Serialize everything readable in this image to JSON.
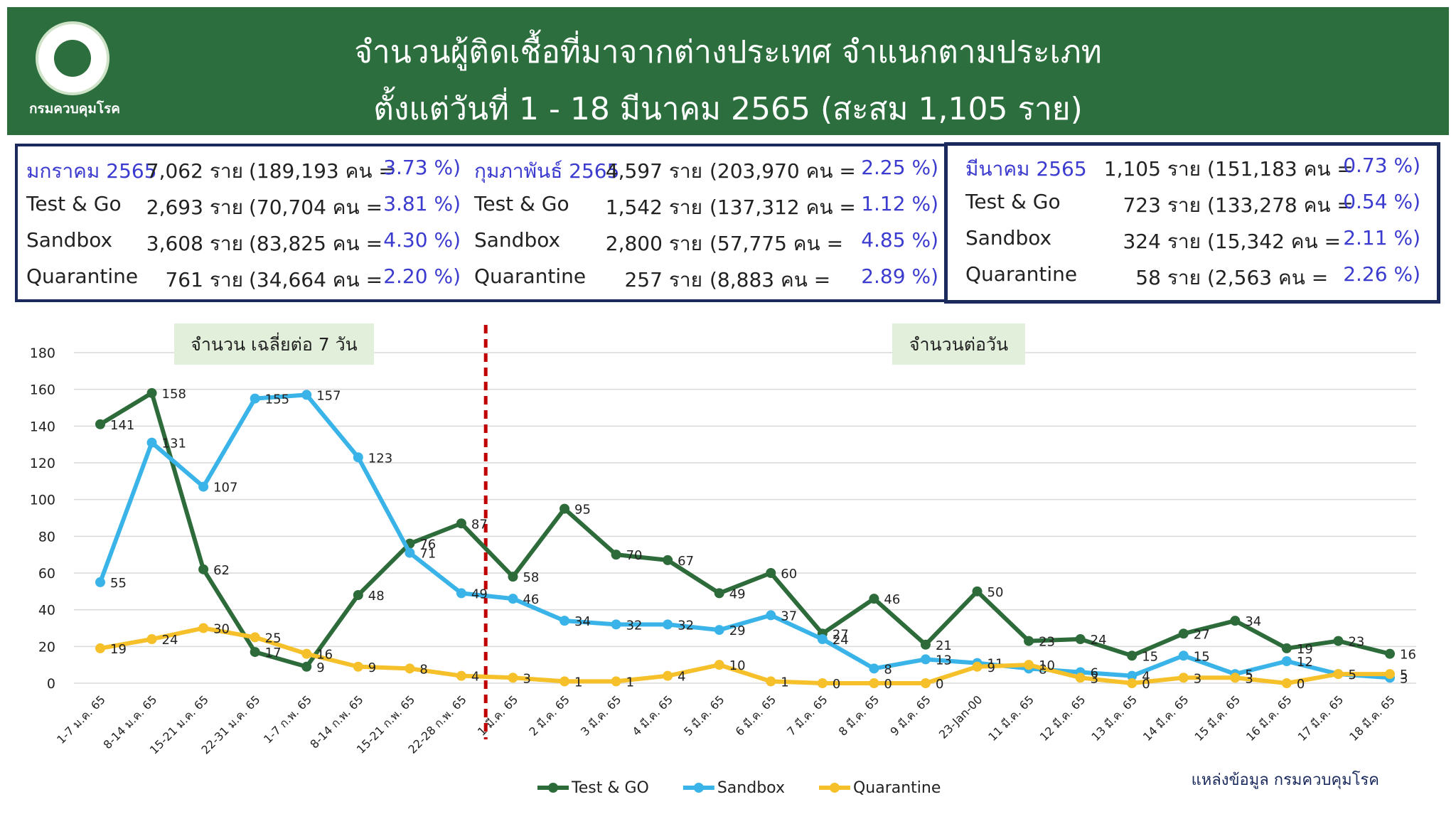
{
  "header": {
    "title_line1": "จำนวนผู้ติดเชื้อที่มาจากต่างประเทศ จำแนกตามประเภท",
    "title_line2": "ตั้งแต่วันที่  1 - 18  มีนาคม  2565 (สะสม 1,105 ราย)",
    "logo_text": "กรมควบคุมโรค"
  },
  "stats": [
    {
      "rows": [
        [
          "มกราคม 2565",
          "7,062 ราย",
          "(189,193 คน =",
          "3.73 %)"
        ],
        [
          "Test & Go",
          "2,693 ราย",
          "(70,704 คน =",
          "3.81 %)"
        ],
        [
          "Sandbox",
          "3,608 ราย",
          "(83,825 คน =",
          "4.30 %)"
        ],
        [
          "Quarantine",
          "761 ราย",
          "(34,664 คน =",
          "2.20 %)"
        ]
      ]
    },
    {
      "rows": [
        [
          "กุมภาพันธ์ 2565",
          "4,597 ราย",
          "(203,970 คน =",
          "2.25 %)"
        ],
        [
          "Test & Go",
          "1,542 ราย",
          "(137,312 คน  =",
          "1.12 %)"
        ],
        [
          "Sandbox",
          "2,800 ราย",
          "(57,775 คน  =",
          "4.85 %)"
        ],
        [
          "Quarantine",
          "257 ราย",
          "(8,883 คน     =",
          "2.89 %)"
        ]
      ]
    },
    {
      "rows": [
        [
          "มีนาคม 2565",
          "1,105 ราย",
          "(151,183 คน =",
          "0.73 %)"
        ],
        [
          "Test & Go",
          "723 ราย",
          "(133,278 คน =",
          "0.54 %)"
        ],
        [
          "Sandbox",
          "324 ราย",
          "(15,342 คน  =",
          "2.11 %)"
        ],
        [
          "Quarantine",
          "58 ราย",
          "(2,563 คน   =",
          "2.26 %)"
        ]
      ]
    }
  ],
  "chart_data": {
    "type": "line",
    "annotations": [
      "จำนวน เฉลี่ยต่อ 7 วัน",
      "จำนวนต่อวัน"
    ],
    "source": "แหล่งข้อมูล กรมควบคุมโรค",
    "categories": [
      "1-7 ม.ค. 65",
      "8-14 ม.ค. 65",
      "15-21 ม.ค. 65",
      "22-31 ม.ค. 65",
      "1-7 ก.พ. 65",
      "8-14 ก.พ. 65",
      "15-21 ก.พ. 65",
      "22-28 ก.พ. 65",
      "1 มี.ค. 65",
      "2 มี.ค. 65",
      "3 มี.ค. 65",
      "4 มี.ค. 65",
      "5 มี.ค. 65",
      "6 มี.ค. 65",
      "7 มี.ค. 65",
      "8 มี.ค. 65",
      "9 มี.ค. 65",
      "23-Jan-00",
      "11 มี.ค. 65",
      "12 มี.ค. 65",
      "13 มี.ค. 65",
      "14 มี.ค. 65",
      "15 มี.ค. 65",
      "16 มี.ค. 65",
      "17 มี.ค. 65",
      "18 มี.ค. 65"
    ],
    "series": [
      {
        "name": "Test & GO",
        "color": "#2e6b3a",
        "values": [
          141,
          158,
          62,
          17,
          9,
          48,
          76,
          87,
          58,
          95,
          70,
          67,
          49,
          60,
          27,
          46,
          21,
          50,
          23,
          24,
          15,
          27,
          34,
          19,
          23,
          16
        ]
      },
      {
        "name": "Sandbox",
        "color": "#3ab4e8",
        "values": [
          55,
          131,
          107,
          155,
          157,
          123,
          71,
          49,
          46,
          34,
          32,
          32,
          29,
          37,
          24,
          8,
          13,
          11,
          8,
          6,
          4,
          15,
          5,
          12,
          5,
          3
        ]
      },
      {
        "name": "Quarantine",
        "color": "#f5c02a",
        "values": [
          19,
          24,
          30,
          25,
          16,
          9,
          8,
          4,
          3,
          1,
          1,
          4,
          10,
          1,
          0,
          0,
          0,
          9,
          10,
          3,
          0,
          3,
          3,
          0,
          5,
          5
        ]
      }
    ],
    "ylim": [
      0,
      180
    ],
    "yticks": [
      0,
      20,
      40,
      60,
      80,
      100,
      120,
      140,
      160,
      180
    ],
    "grid": true
  }
}
